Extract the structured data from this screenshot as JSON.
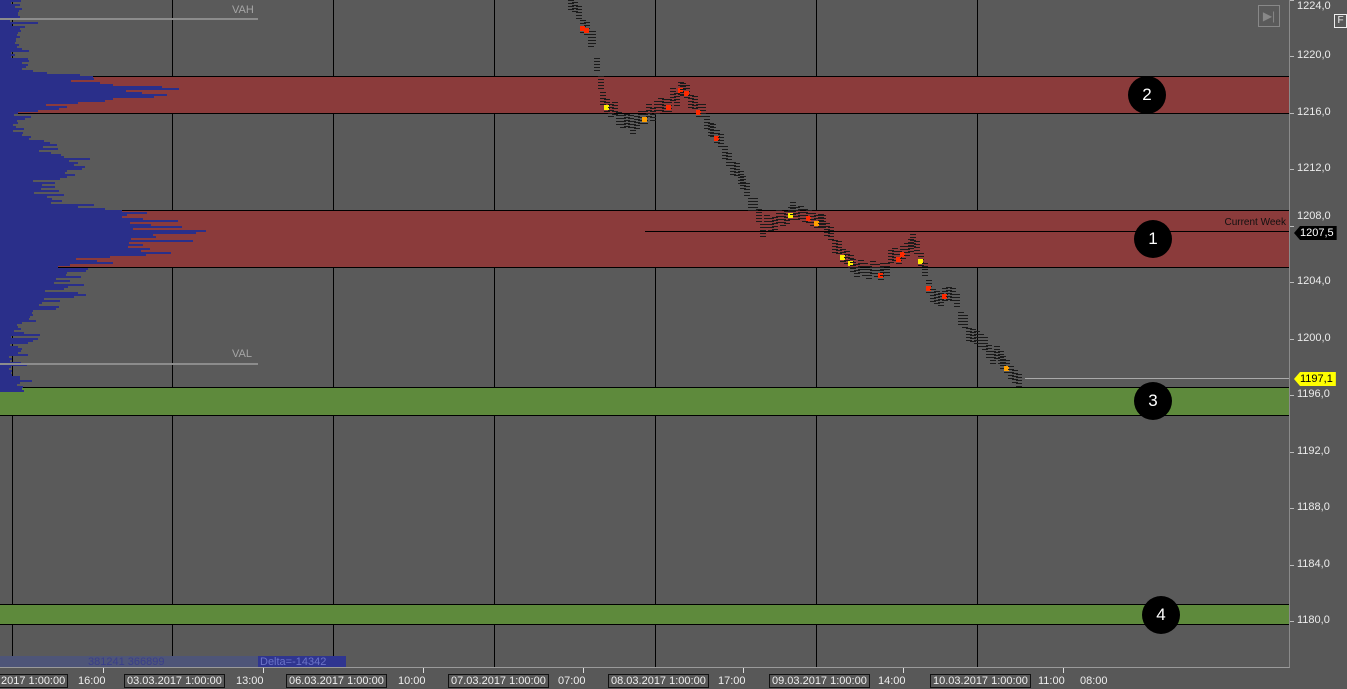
{
  "chart_data": {
    "type": "market-profile-price-chart",
    "y_axis": {
      "ticks": [
        "1224,0",
        "1220,0",
        "1216,0",
        "1212,0",
        "1208,0",
        "1204,0",
        "1200,0",
        "1196,0",
        "1192,0",
        "1188,0",
        "1184,0",
        "1180,0"
      ],
      "range": [
        1178,
        1225
      ]
    },
    "x_axis": {
      "labels": [
        "16:00",
        "13:00",
        "10:00",
        "07:00",
        "17:00",
        "14:00",
        "11:00",
        "08:00"
      ],
      "boxed_labels": [
        "2017 1:00:00",
        "03.03.2017 1:00:00",
        "06.03.2017 1:00:00",
        "07.03.2017 1:00:00",
        "08.03.2017 1:00:00",
        "09.03.2017 1:00:00",
        "10.03.2017 1:00:00"
      ]
    },
    "zones": [
      {
        "label": "2",
        "color": "#8b3b3b",
        "from": 1215.9,
        "to": 1218.6
      },
      {
        "label": "1",
        "color": "#8b3b3b",
        "from": 1205.0,
        "to": 1209.1
      },
      {
        "label": "3",
        "color": "#5e8a3c",
        "from": 1194.5,
        "to": 1196.6
      },
      {
        "label": "4",
        "color": "#5e8a3c",
        "from": 1179.7,
        "to": 1181.2
      }
    ],
    "value_area": {
      "vah_label": "VAH",
      "val_label": "VAL",
      "vah": 1223.4,
      "val": 1198.9
    },
    "current_week": {
      "label": "Current Week",
      "price": 1207.5,
      "price_label": "1207,5"
    },
    "last_price": {
      "price": 1197.1,
      "label": "1197,1",
      "color": "#ffff00"
    },
    "price_path": [
      [
        560,
        1225
      ],
      [
        590,
        1221
      ],
      [
        600,
        1217
      ],
      [
        630,
        1215
      ],
      [
        650,
        1216
      ],
      [
        680,
        1217.5
      ],
      [
        710,
        1215
      ],
      [
        740,
        1211
      ],
      [
        760,
        1208
      ],
      [
        790,
        1209
      ],
      [
        820,
        1208
      ],
      [
        850,
        1205
      ],
      [
        880,
        1205
      ],
      [
        910,
        1207
      ],
      [
        930,
        1203
      ],
      [
        950,
        1203
      ],
      [
        970,
        1200
      ],
      [
        1000,
        1198.5
      ],
      [
        1020,
        1197.1
      ]
    ]
  },
  "footer": {
    "volumes": "381241 366899",
    "delta": "Delta=-14342"
  },
  "toolbar": {
    "scroll_end": "scroll-to-end-icon",
    "f_button": "F"
  },
  "colors": {
    "profile": "#2a2f8a",
    "red_zone": "#8b3b3b",
    "green_zone": "#5e8a3c",
    "background": "#5a5a5a"
  }
}
